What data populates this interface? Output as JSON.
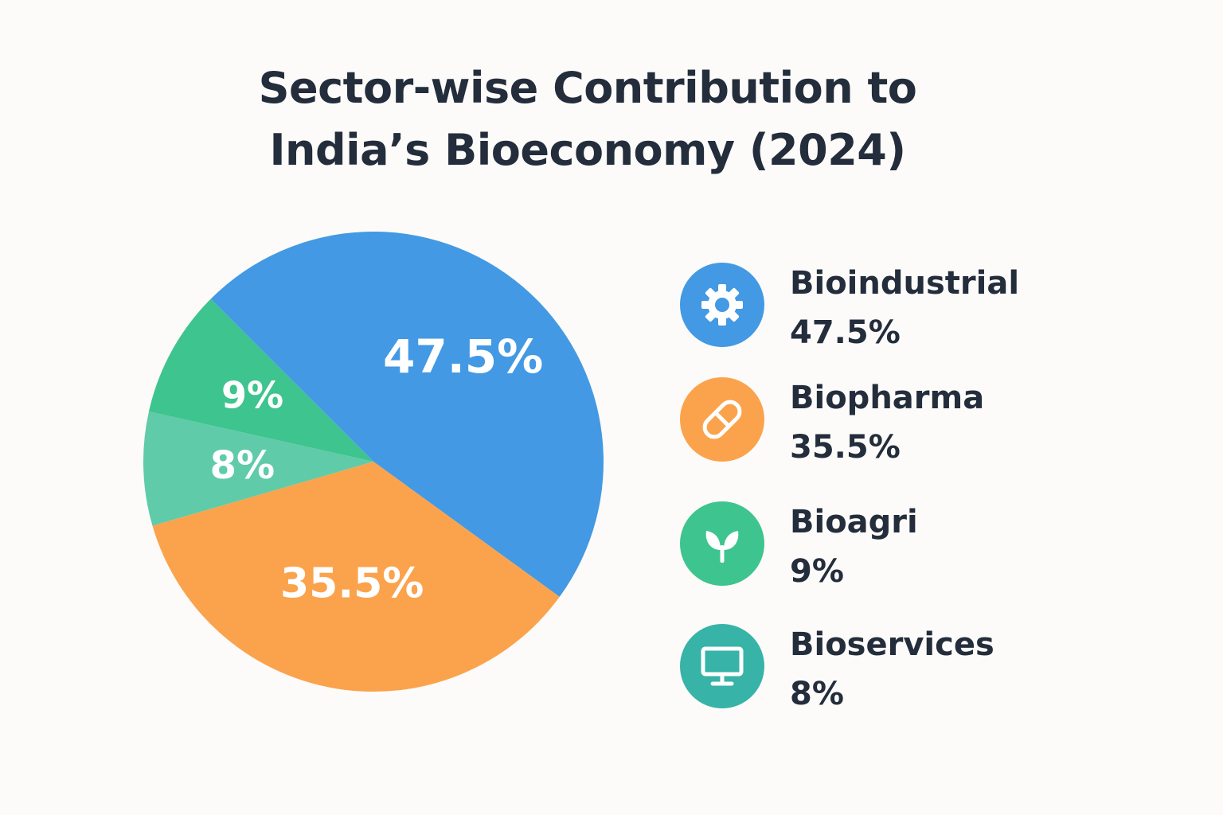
{
  "chart_data": {
    "type": "pie",
    "title_lines": [
      "Sector-wise Contribution to",
      "India’s Bioeconomy (2024)"
    ],
    "slices": [
      {
        "name": "Bioindustrial",
        "value": 47.5,
        "label": "47.5%",
        "color": "#4399e3",
        "icon": "gear-icon"
      },
      {
        "name": "Biopharma",
        "value": 35.5,
        "label": "35.5%",
        "color": "#fba34c",
        "icon": "pill-icon"
      },
      {
        "name": "Bioservices",
        "value": 8,
        "label": "8%",
        "color": "#5fcba9",
        "icon": "monitor-icon",
        "legend_color": "#37b3a7"
      },
      {
        "name": "Bioagri",
        "value": 9,
        "label": "9%",
        "color": "#3ec48e",
        "icon": "sprout-icon"
      }
    ],
    "legend": [
      {
        "name": "Bioindustrial",
        "value": "47.5%",
        "color": "#4399e3",
        "icon": "gear-icon"
      },
      {
        "name": "Biopharma",
        "value": "35.5%",
        "color": "#fba34c",
        "icon": "pill-icon"
      },
      {
        "name": "Bioagri",
        "value": "9%",
        "color": "#3ec48e",
        "icon": "sprout-icon"
      },
      {
        "name": "Bioservices",
        "value": "8%",
        "color": "#37b3a7",
        "icon": "monitor-icon"
      }
    ],
    "legend_placement": "right"
  }
}
